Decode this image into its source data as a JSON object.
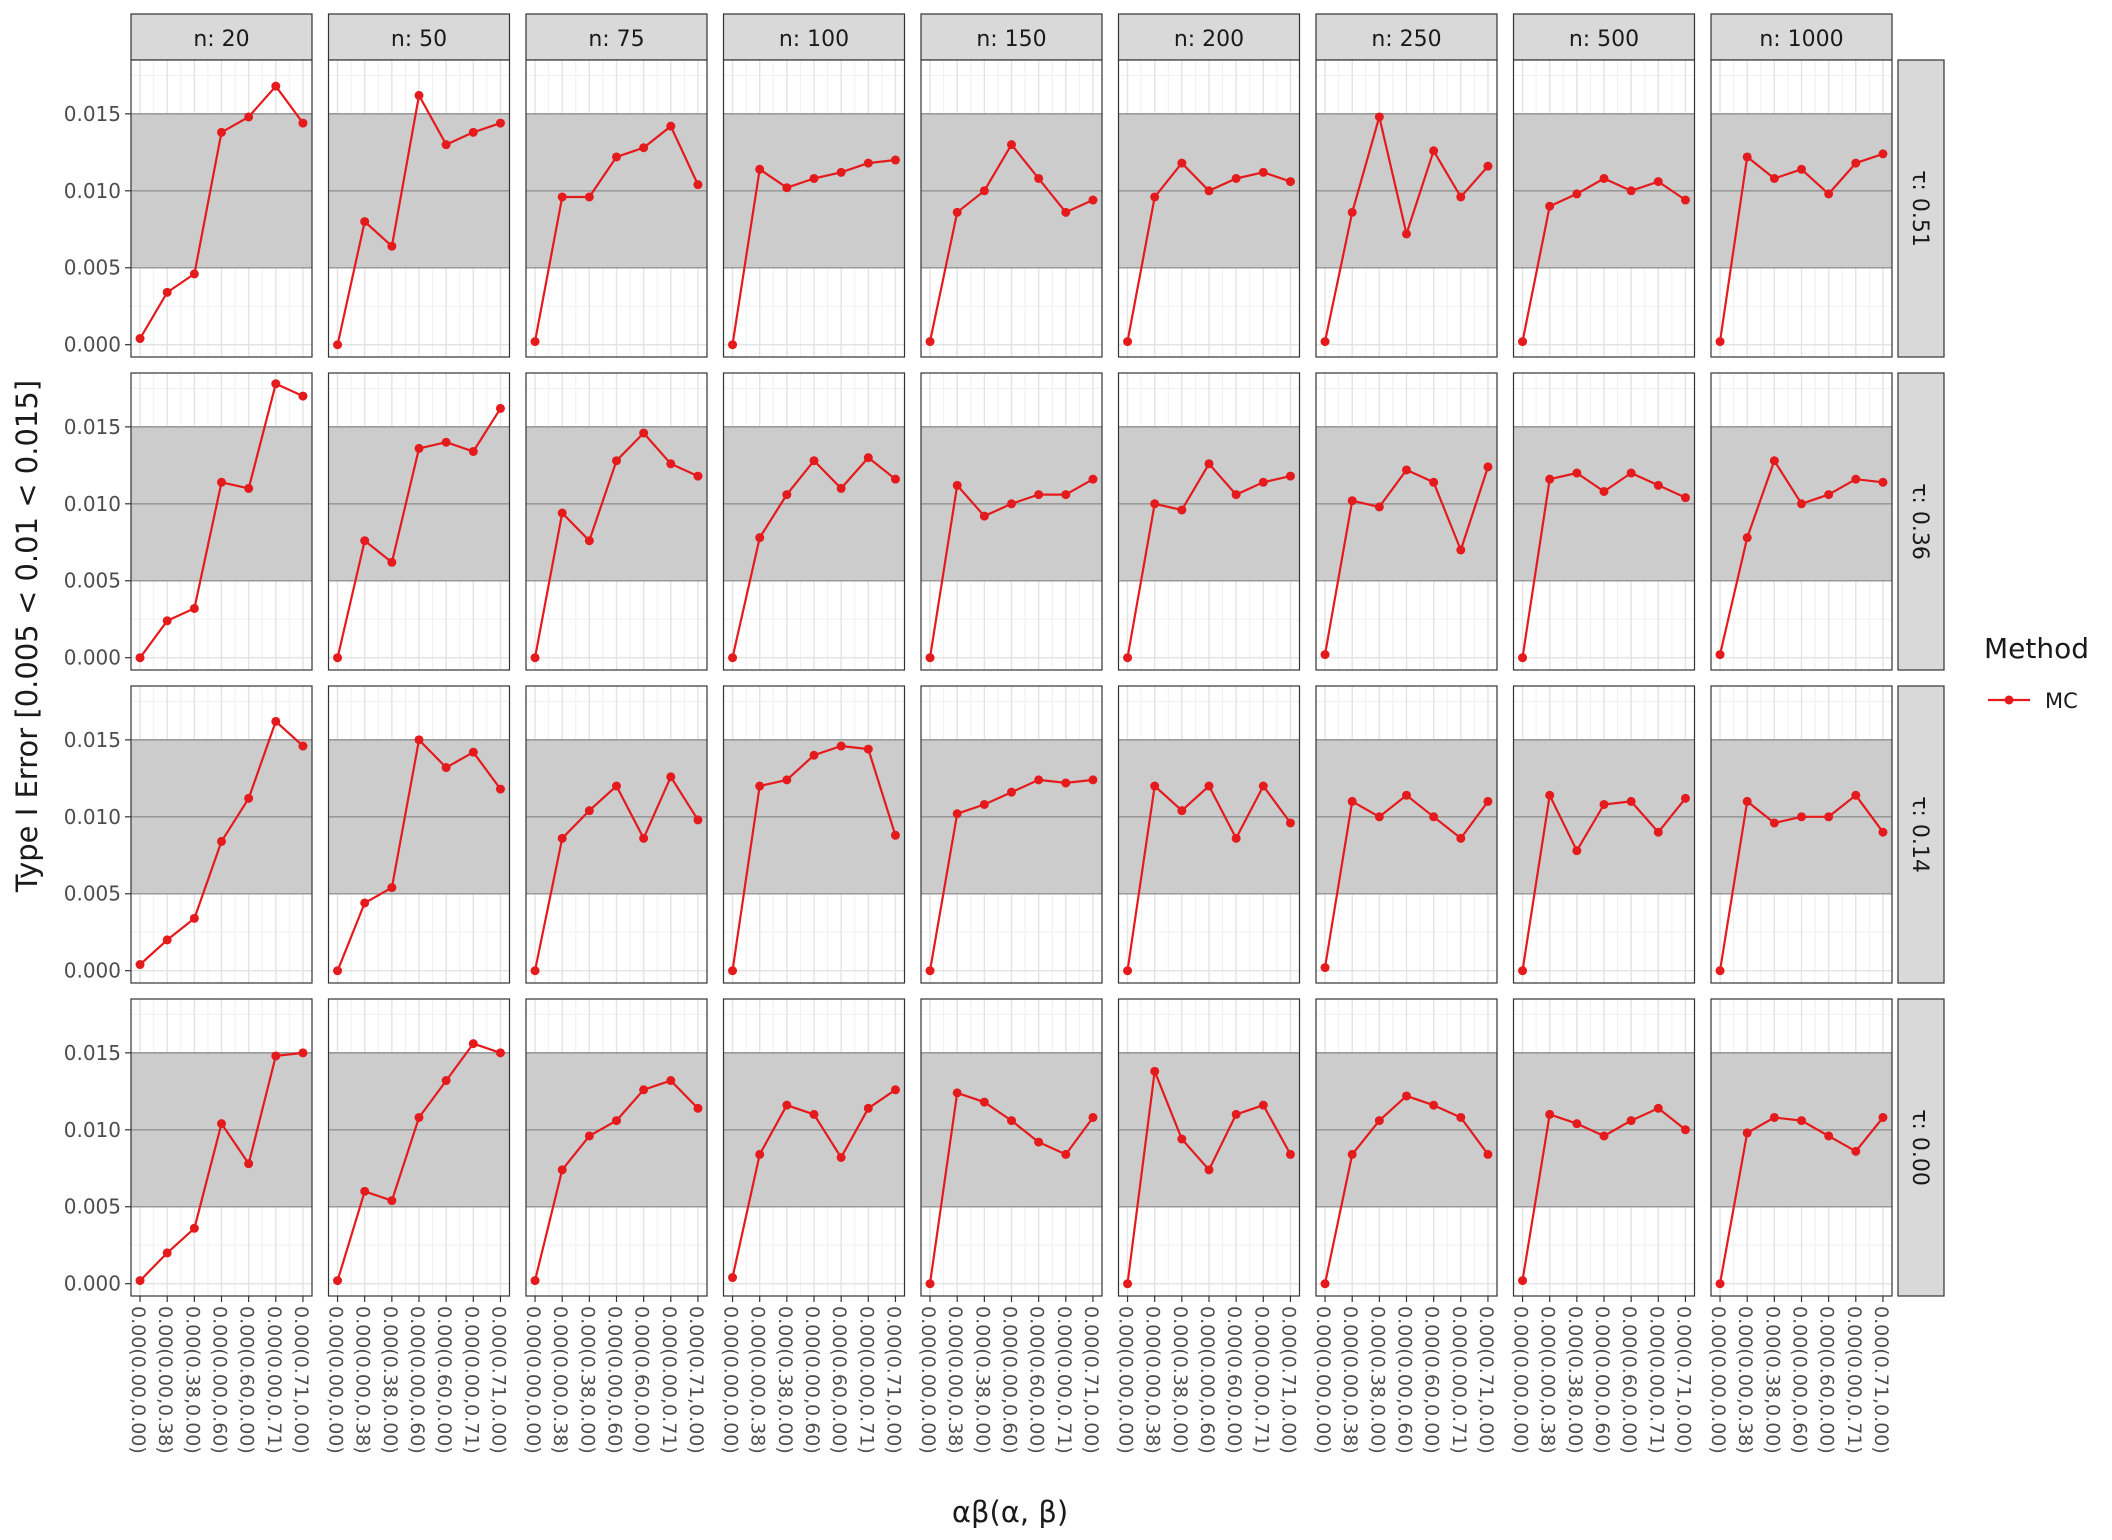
{
  "chart_data": {
    "type": "line",
    "facet_type": "grid",
    "xlabel": "αβ(α, β)",
    "ylabel": "Type I Error [0.005 < 0.01 < 0.015]",
    "legend": {
      "title": "Method",
      "position": "right",
      "entries": [
        "MC"
      ]
    },
    "series_color": "#E41A1C",
    "band_color": "#CCCCCC",
    "strip_color": "#D9D9D9",
    "band": [
      0.005,
      0.015
    ],
    "ref_lines": [
      0.005,
      0.01,
      0.015
    ],
    "ylim": [
      -0.0008,
      0.0185
    ],
    "y_ticks": [
      "0.000",
      "0.005",
      "0.010",
      "0.015"
    ],
    "y_tick_values": [
      0,
      0.005,
      0.01,
      0.015
    ],
    "categories": [
      "0.00(0.00,0.00)",
      "0.00(0.00,0.38)",
      "0.00(0.38,0.00)",
      "0.00(0.00,0.60)",
      "0.00(0.60,0.00)",
      "0.00(0.00,0.71)",
      "0.00(0.71,0.00)"
    ],
    "col_facets": [
      "n: 20",
      "n: 50",
      "n: 75",
      "n: 100",
      "n: 150",
      "n: 200",
      "n: 250",
      "n: 500",
      "n: 1000"
    ],
    "row_facets": [
      "τ: 0.51",
      "τ: 0.36",
      "τ: 0.14",
      "τ: 0.00"
    ],
    "grid": true,
    "series": [
      {
        "name": "MC",
        "values": [
          [
            [
              0.0004,
              0.0034,
              0.0046,
              0.0138,
              0.0148,
              0.0168,
              0.0144
            ],
            [
              0.0,
              0.008,
              0.0064,
              0.0162,
              0.013,
              0.0138,
              0.0144
            ],
            [
              0.0002,
              0.0096,
              0.0096,
              0.0122,
              0.0128,
              0.0142,
              0.0104
            ],
            [
              0.0,
              0.0114,
              0.0102,
              0.0108,
              0.0112,
              0.0118,
              0.012
            ],
            [
              0.0002,
              0.0086,
              0.01,
              0.013,
              0.0108,
              0.0086,
              0.0094
            ],
            [
              0.0002,
              0.0096,
              0.0118,
              0.01,
              0.0108,
              0.0112,
              0.0106
            ],
            [
              0.0002,
              0.0086,
              0.0148,
              0.0072,
              0.0126,
              0.0096,
              0.0116
            ],
            [
              0.0002,
              0.009,
              0.0098,
              0.0108,
              0.01,
              0.0106,
              0.0094
            ],
            [
              0.0002,
              0.0122,
              0.0108,
              0.0114,
              0.0098,
              0.0118,
              0.0124
            ]
          ],
          [
            [
              0.0,
              0.0024,
              0.0032,
              0.0114,
              0.011,
              0.0178,
              0.017
            ],
            [
              0.0,
              0.0076,
              0.0062,
              0.0136,
              0.014,
              0.0134,
              0.0162
            ],
            [
              0.0,
              0.0094,
              0.0076,
              0.0128,
              0.0146,
              0.0126,
              0.0118
            ],
            [
              0.0,
              0.0078,
              0.0106,
              0.0128,
              0.011,
              0.013,
              0.0116
            ],
            [
              0.0,
              0.0112,
              0.0092,
              0.01,
              0.0106,
              0.0106,
              0.0116
            ],
            [
              0.0,
              0.01,
              0.0096,
              0.0126,
              0.0106,
              0.0114,
              0.0118
            ],
            [
              0.0002,
              0.0102,
              0.0098,
              0.0122,
              0.0114,
              0.007,
              0.0124
            ],
            [
              0.0,
              0.0116,
              0.012,
              0.0108,
              0.012,
              0.0112,
              0.0104
            ],
            [
              0.0002,
              0.0078,
              0.0128,
              0.01,
              0.0106,
              0.0116,
              0.0114
            ]
          ],
          [
            [
              0.0004,
              0.002,
              0.0034,
              0.0084,
              0.0112,
              0.0162,
              0.0146
            ],
            [
              0.0,
              0.0044,
              0.0054,
              0.015,
              0.0132,
              0.0142,
              0.0118
            ],
            [
              0.0,
              0.0086,
              0.0104,
              0.012,
              0.0086,
              0.0126,
              0.0098
            ],
            [
              0.0,
              0.012,
              0.0124,
              0.014,
              0.0146,
              0.0144,
              0.0088
            ],
            [
              0.0,
              0.0102,
              0.0108,
              0.0116,
              0.0124,
              0.0122,
              0.0124
            ],
            [
              0.0,
              0.012,
              0.0104,
              0.012,
              0.0086,
              0.012,
              0.0096
            ],
            [
              0.0002,
              0.011,
              0.01,
              0.0114,
              0.01,
              0.0086,
              0.011
            ],
            [
              0.0,
              0.0114,
              0.0078,
              0.0108,
              0.011,
              0.009,
              0.0112
            ],
            [
              0.0,
              0.011,
              0.0096,
              0.01,
              0.01,
              0.0114,
              0.009
            ]
          ],
          [
            [
              0.0002,
              0.002,
              0.0036,
              0.0104,
              0.0078,
              0.0148,
              0.015
            ],
            [
              0.0002,
              0.006,
              0.0054,
              0.0108,
              0.0132,
              0.0156,
              0.015
            ],
            [
              0.0002,
              0.0074,
              0.0096,
              0.0106,
              0.0126,
              0.0132,
              0.0114
            ],
            [
              0.0004,
              0.0084,
              0.0116,
              0.011,
              0.0082,
              0.0114,
              0.0126
            ],
            [
              0.0,
              0.0124,
              0.0118,
              0.0106,
              0.0092,
              0.0084,
              0.0108
            ],
            [
              0.0,
              0.0138,
              0.0094,
              0.0074,
              0.011,
              0.0116,
              0.0084
            ],
            [
              0.0,
              0.0084,
              0.0106,
              0.0122,
              0.0116,
              0.0108,
              0.0084
            ],
            [
              0.0002,
              0.011,
              0.0104,
              0.0096,
              0.0106,
              0.0114,
              0.01
            ],
            [
              0.0,
              0.0098,
              0.0108,
              0.0106,
              0.0096,
              0.0086,
              0.0108
            ]
          ]
        ]
      }
    ]
  }
}
